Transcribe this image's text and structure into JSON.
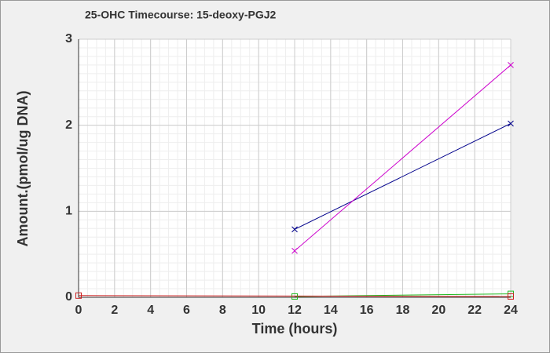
{
  "chart_data": {
    "type": "line",
    "title": "25-OHC Timecourse: 15-deoxy-PGJ2",
    "x_label": "Time (hours)",
    "y_label": "Amount.(pmol/ug DNA)",
    "xlim": [
      0,
      24
    ],
    "xticks": [
      0,
      2,
      4,
      6,
      8,
      10,
      12,
      14,
      16,
      18,
      20,
      22,
      24
    ],
    "ylim": [
      0,
      3
    ],
    "yticks": [
      0,
      1,
      2,
      3
    ],
    "grid": true,
    "series": [
      {
        "color": "#00008b",
        "marker": "x",
        "x": [
          12,
          24
        ],
        "values": [
          0.79,
          2.02
        ]
      },
      {
        "color": "#cc00cc",
        "marker": "x",
        "x": [
          12,
          24
        ],
        "values": [
          0.54,
          2.7
        ]
      },
      {
        "color": "#22bb22",
        "marker": "square",
        "x": [
          12,
          24
        ],
        "values": [
          0.01,
          0.04
        ]
      },
      {
        "color": "#cc2222",
        "marker": "square",
        "x": [
          0,
          24
        ],
        "values": [
          0.02,
          0.01
        ]
      }
    ]
  }
}
